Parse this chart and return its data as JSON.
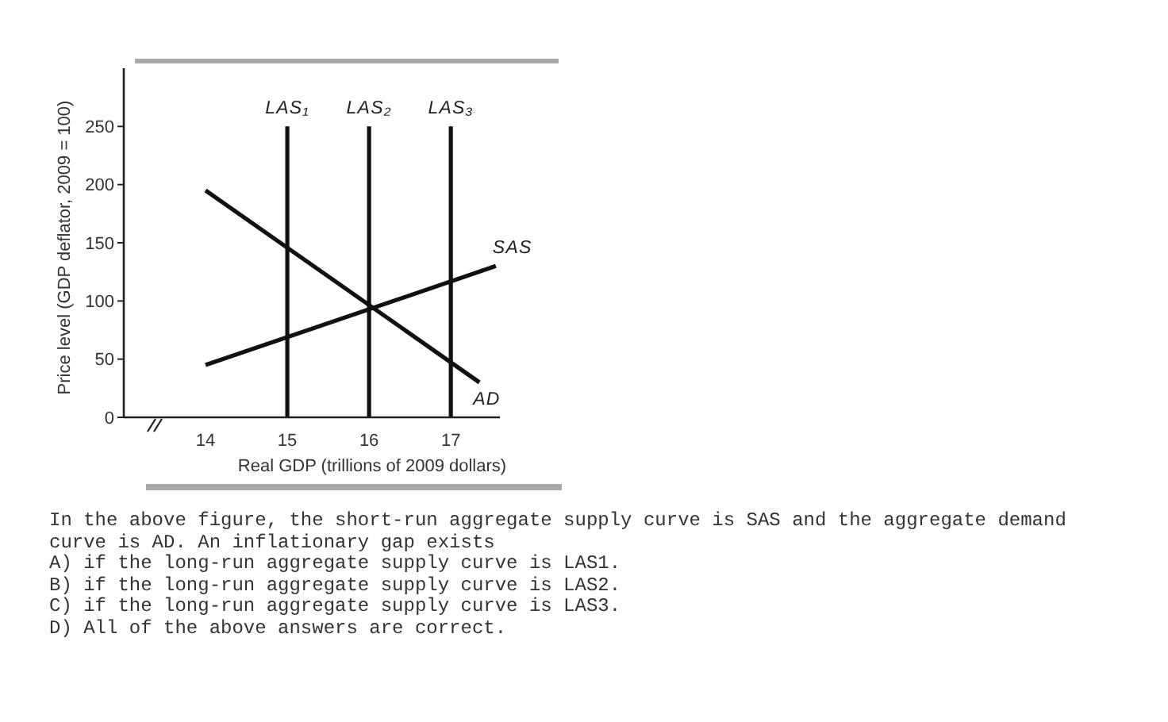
{
  "chart_data": {
    "type": "line",
    "xlabel": "Real GDP (trillions of 2009 dollars)",
    "ylabel": "Price level (GDP deflator, 2009 = 100)",
    "xlim": [
      13,
      17.6
    ],
    "xticks": [
      14,
      15,
      16,
      17
    ],
    "ylim": [
      0,
      300
    ],
    "yticks": [
      0,
      50,
      100,
      150,
      200,
      250
    ],
    "grid": false,
    "legend": false,
    "marker": "none",
    "line_style": "solid",
    "series": [
      {
        "name": "SAS",
        "color": "#111111",
        "x": [
          14,
          17.55
        ],
        "values": [
          45,
          130
        ]
      },
      {
        "name": "AD",
        "color": "#111111",
        "x": [
          14,
          17.35
        ],
        "values": [
          195,
          30
        ]
      }
    ],
    "ref_lines": [
      {
        "axis": "x",
        "value": 15,
        "label": "LAS₁",
        "color": "#111111"
      },
      {
        "axis": "x",
        "value": 16,
        "label": "LAS₂",
        "color": "#111111"
      },
      {
        "axis": "x",
        "value": 17,
        "label": "LAS₃",
        "color": "#111111"
      }
    ],
    "annotations": [
      "In the above figure, the short-run aggregate supply curve is SAS and the aggregate demand curve is AD. An inflationary gap exists",
      "A) if the long-run aggregate supply curve is LAS1.",
      "B) if the long-run aggregate supply curve is LAS2.",
      "C) if the long-run aggregate supply curve is LAS3.",
      "D) All of the above answers are correct."
    ]
  }
}
